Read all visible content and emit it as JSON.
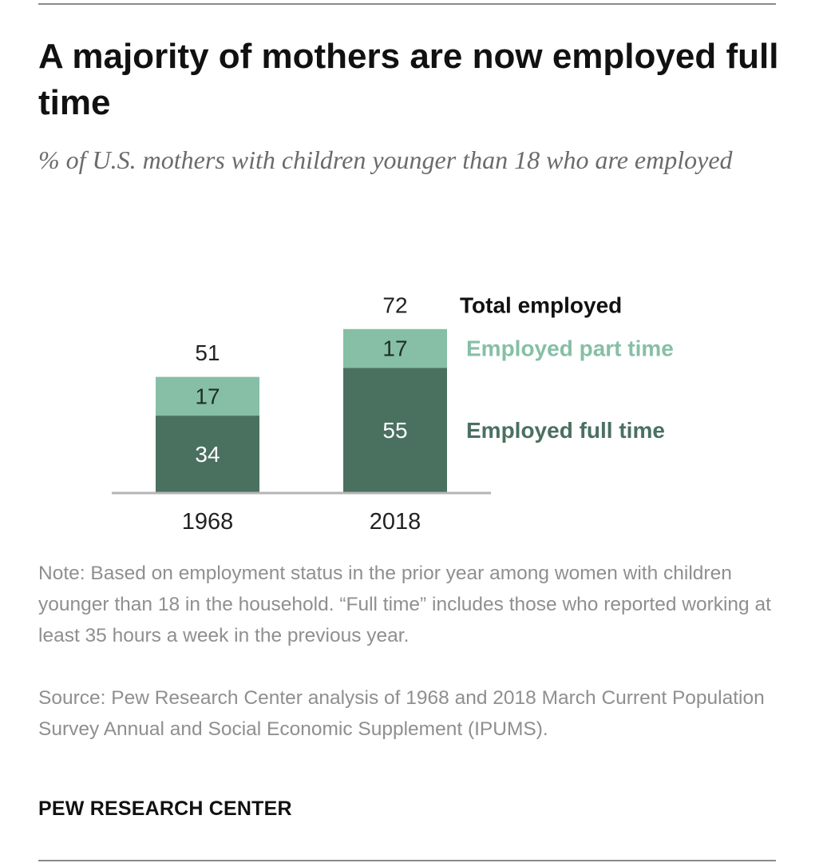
{
  "chart_data": {
    "type": "bar",
    "stacked": true,
    "title": "A majority of mothers are now employed full time",
    "subtitle": "% of U.S. mothers with children younger than 18 who are employed",
    "categories": [
      "1968",
      "2018"
    ],
    "series": [
      {
        "name": "Employed full time",
        "values": [
          34,
          55
        ],
        "color": "#4a7060",
        "label_color": "#4a7060"
      },
      {
        "name": "Employed part time",
        "values": [
          17,
          17
        ],
        "color": "#86bfa6",
        "label_color": "#86bfa6"
      }
    ],
    "totals": {
      "name": "Total employed",
      "values": [
        51,
        72
      ],
      "label_color": "#111111"
    },
    "ylim": [
      0,
      72
    ],
    "grid": false,
    "legend": "direct-labels-right"
  },
  "footer": {
    "note": "Note: Based on employment status in the prior year among women with children younger than 18 in the household. “Full time” includes those who reported working at least 35 hours a week in the previous year.",
    "source": "Source: Pew Research Center analysis of 1968 and 2018 March Current Population Survey Annual and Social Economic Supplement (IPUMS).",
    "brand": "PEW RESEARCH CENTER"
  }
}
